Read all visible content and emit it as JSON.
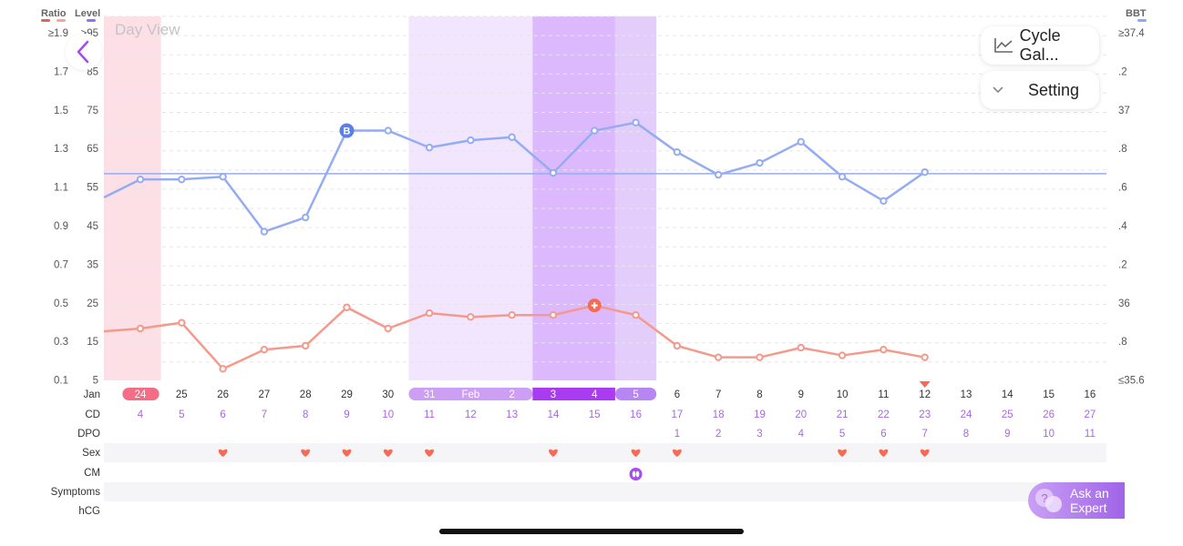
{
  "header": {
    "ratio_label": "Ratio",
    "level_label": "Level",
    "bbt_label": "BBT",
    "day_view": "Day View",
    "cycle_gallery_btn": "Cycle Gal...",
    "setting_btn": "Setting",
    "ask_expert_line1": "Ask an",
    "ask_expert_line2": "Expert"
  },
  "colors": {
    "ratio_swatch": "#e0645a",
    "ratio_swatch2": "#f7a59b",
    "level_swatch": "#9b6cf0",
    "bbt_swatch": "#8fa8f2",
    "lh_line": "#f49a8c",
    "bbt_line": "#95acf3",
    "coverline": "#95acf3",
    "period_band": "#fde0e5",
    "period_cell": "#f46d86",
    "fertile_light": "#f1e6fd",
    "fertile_mid": "#e2cdfb",
    "fertile_dark": "#dcb9fc",
    "fertile_cell_light": "#cc9ef4",
    "fertile_cell_mid": "#b786f2",
    "fertile_cell_dark": "#a93bf0",
    "heart": "#f56b55",
    "purple_text": "#a868e0",
    "row_shade": "#f5f5f7"
  },
  "chart_data": {
    "type": "line",
    "y_axes": {
      "ratio_ticks": [
        "≥1.9",
        "1.7",
        "1.5",
        "1.3",
        "1.1",
        "0.9",
        "0.7",
        "0.5",
        "0.3",
        "0.1"
      ],
      "level_ticks": [
        ">95",
        "85",
        "75",
        "65",
        "55",
        "45",
        "35",
        "25",
        "15",
        "5"
      ],
      "bbt_ticks": [
        "≥37.4",
        ".2",
        "37",
        ".8",
        ".6",
        ".4",
        ".2",
        "36",
        ".8",
        "≤35.6"
      ]
    },
    "dates": [
      "Jan",
      "24",
      "25",
      "26",
      "27",
      "28",
      "29",
      "30",
      "31",
      "Feb",
      "2",
      "3",
      "4",
      "5",
      "6",
      "7",
      "8",
      "9",
      "10",
      "11",
      "12",
      "13",
      "14",
      "15",
      "16"
    ],
    "columns": [
      {
        "date": "24",
        "cd": "4",
        "dpo": "",
        "sex": false,
        "cm": false,
        "marker": ""
      },
      {
        "date": "25",
        "cd": "5",
        "dpo": "",
        "sex": false,
        "cm": false,
        "marker": ""
      },
      {
        "date": "26",
        "cd": "6",
        "dpo": "",
        "sex": true,
        "cm": false,
        "marker": ""
      },
      {
        "date": "27",
        "cd": "7",
        "dpo": "",
        "sex": false,
        "cm": false,
        "marker": ""
      },
      {
        "date": "28",
        "cd": "8",
        "dpo": "",
        "sex": true,
        "cm": false,
        "marker": ""
      },
      {
        "date": "29",
        "cd": "9",
        "dpo": "",
        "sex": true,
        "cm": false,
        "marker": ""
      },
      {
        "date": "30",
        "cd": "10",
        "dpo": "",
        "sex": true,
        "cm": false,
        "marker": ""
      },
      {
        "date": "31",
        "cd": "11",
        "dpo": "",
        "sex": true,
        "cm": false,
        "marker": ""
      },
      {
        "date": "Feb",
        "cd": "12",
        "dpo": "",
        "sex": false,
        "cm": false,
        "marker": ""
      },
      {
        "date": "2",
        "cd": "13",
        "dpo": "",
        "sex": false,
        "cm": false,
        "marker": ""
      },
      {
        "date": "3",
        "cd": "14",
        "dpo": "",
        "sex": true,
        "cm": false,
        "marker": ""
      },
      {
        "date": "4",
        "cd": "15",
        "dpo": "",
        "sex": false,
        "cm": false,
        "marker": ""
      },
      {
        "date": "5",
        "cd": "16",
        "dpo": "",
        "sex": true,
        "cm": true,
        "marker": ""
      },
      {
        "date": "6",
        "cd": "17",
        "dpo": "1",
        "sex": true,
        "cm": false,
        "marker": ""
      },
      {
        "date": "7",
        "cd": "18",
        "dpo": "2",
        "sex": false,
        "cm": false,
        "marker": ""
      },
      {
        "date": "8",
        "cd": "19",
        "dpo": "3",
        "sex": false,
        "cm": false,
        "marker": ""
      },
      {
        "date": "9",
        "cd": "20",
        "dpo": "4",
        "sex": false,
        "cm": false,
        "marker": ""
      },
      {
        "date": "10",
        "cd": "21",
        "dpo": "5",
        "sex": true,
        "cm": false,
        "marker": ""
      },
      {
        "date": "11",
        "cd": "22",
        "dpo": "6",
        "sex": true,
        "cm": false,
        "marker": ""
      },
      {
        "date": "12",
        "cd": "23",
        "dpo": "7",
        "sex": true,
        "cm": false,
        "marker": "today"
      },
      {
        "date": "13",
        "cd": "24",
        "dpo": "8",
        "sex": false,
        "cm": false,
        "marker": ""
      },
      {
        "date": "14",
        "cd": "25",
        "dpo": "9",
        "sex": false,
        "cm": false,
        "marker": ""
      },
      {
        "date": "15",
        "cd": "26",
        "dpo": "10",
        "sex": false,
        "cm": false,
        "marker": ""
      },
      {
        "date": "16",
        "cd": "27",
        "dpo": "11",
        "sex": false,
        "cm": false,
        "marker": ""
      }
    ],
    "row_labels": [
      "Jan",
      "CD",
      "DPO",
      "Sex",
      "CM",
      "Symptoms",
      "hCG"
    ],
    "lh_ratio": [
      0.37,
      0.4,
      0.16,
      0.26,
      0.28,
      0.48,
      0.37,
      0.45,
      0.43,
      0.44,
      0.44,
      0.49,
      0.44,
      0.28,
      0.22,
      0.22,
      0.27,
      0.23,
      0.26,
      0.22,
      null,
      null,
      null,
      null
    ],
    "lh_peak_index": 11,
    "bbt_level": [
      57.3,
      57.3,
      58.0,
      43.7,
      47.4,
      70.0,
      70.0,
      65.6,
      67.5,
      68.3,
      59.0,
      70.0,
      72.1,
      64.4,
      58.5,
      61.6,
      67.1,
      58.0,
      51.7,
      59.2,
      null,
      null,
      null,
      null
    ],
    "bbt_start_level": 52.6,
    "lh_start_ratio": 0.355,
    "bbt_badge_index": 5,
    "bbt_badge": "B",
    "coverline_level": 58.8,
    "period_range": [
      0,
      1
    ],
    "fertile_light_range": [
      7,
      10
    ],
    "fertile_dark_range": [
      10,
      12
    ],
    "fertile_mid_range": [
      12,
      13
    ]
  }
}
